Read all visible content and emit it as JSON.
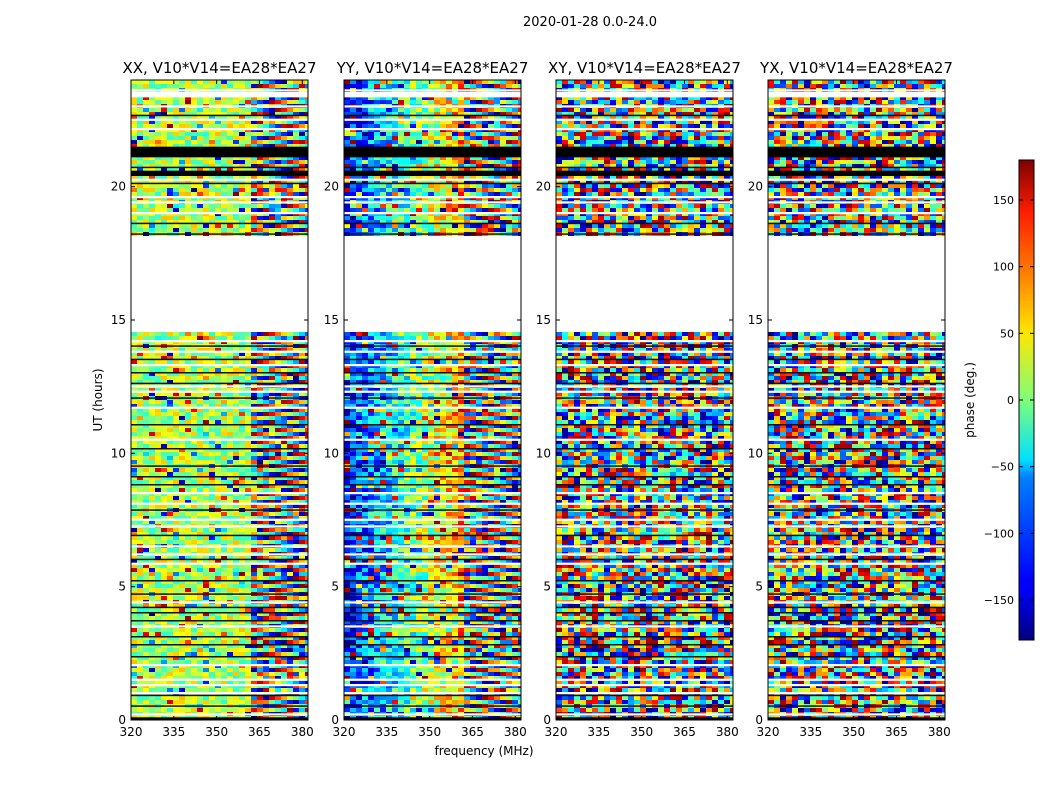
{
  "chart_data": {
    "type": "heatmap",
    "suptitle": "2020-01-28 0.0-24.0",
    "panels": [
      {
        "title": "XX, V10*V14=EA28*EA27",
        "scheme": "xx"
      },
      {
        "title": "YY, V10*V14=EA28*EA27",
        "scheme": "yy"
      },
      {
        "title": "XY, V10*V14=EA28*EA27",
        "scheme": "cross"
      },
      {
        "title": "YX, V10*V14=EA28*EA27",
        "scheme": "cross"
      }
    ],
    "xlabel": "frequency (MHz)",
    "ylabel": "UT (hours)",
    "xlim": [
      320,
      382
    ],
    "ylim": [
      0,
      24
    ],
    "xticks": [
      320,
      335,
      350,
      365,
      380
    ],
    "yticks": [
      0,
      5,
      10,
      15,
      20
    ],
    "colorbar": {
      "label": "phase (deg.)",
      "range": [
        -180,
        180
      ],
      "ticks": [
        -150,
        -100,
        -50,
        0,
        50,
        100,
        150
      ],
      "tick_labels": [
        "−150",
        "−100",
        "−50",
        "0",
        "50",
        "100",
        "150"
      ],
      "colormap": "jet"
    },
    "missing_time_ranges_hours": [
      [
        14.5,
        18.2
      ]
    ],
    "flagged_black_bands_hours": [
      [
        21.1,
        21.5
      ],
      [
        20.4,
        20.6
      ],
      [
        0.0,
        0.1
      ]
    ],
    "frequency_break_mhz": 361
  }
}
